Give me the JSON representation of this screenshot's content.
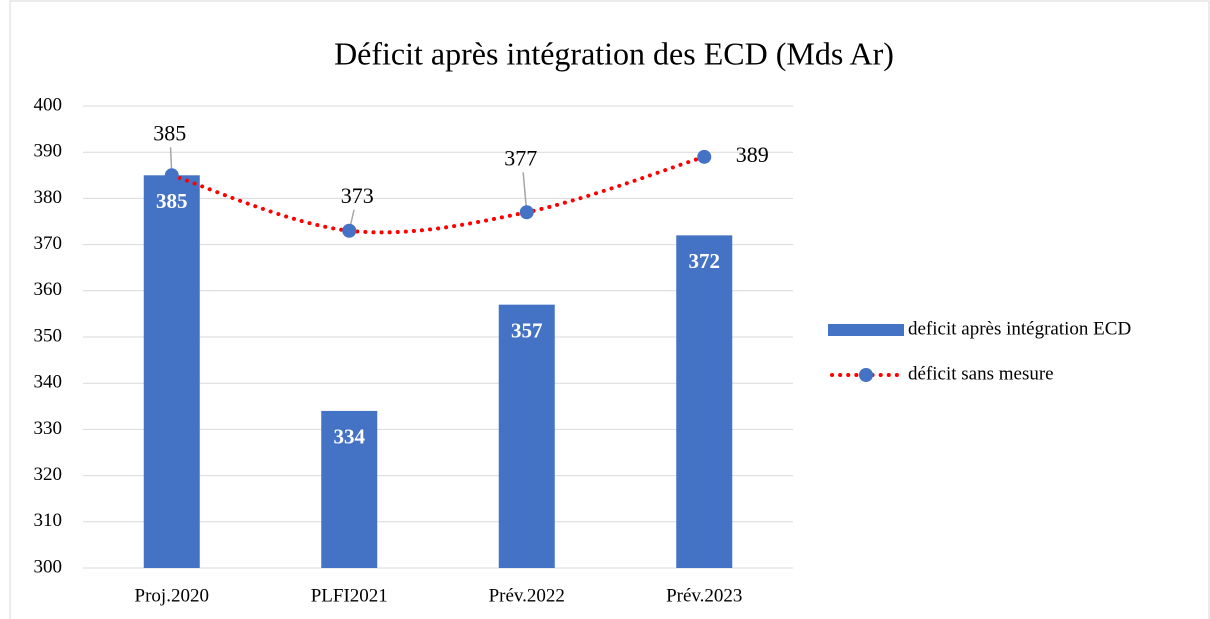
{
  "chart_data": {
    "type": "combo",
    "title": "Déficit après intégration des ECD (Mds Ar)",
    "categories": [
      "Proj.2020",
      "PLFI2021",
      "Prév.2022",
      "Prév.2023"
    ],
    "series": [
      {
        "name": "deficit après intégration ECD",
        "type": "bar",
        "color": "#4472c4",
        "values": [
          385,
          334,
          357,
          372
        ]
      },
      {
        "name": "déficit sans mesure",
        "type": "line",
        "color": "#ff0000",
        "marker_color": "#4472c4",
        "line_style": "dotted",
        "smooth": true,
        "values": [
          385,
          373,
          377,
          389
        ]
      }
    ],
    "ylim": [
      300,
      400
    ],
    "yticks": [
      300,
      310,
      320,
      330,
      340,
      350,
      360,
      370,
      380,
      390,
      400
    ],
    "grid": true,
    "legend": "right"
  }
}
